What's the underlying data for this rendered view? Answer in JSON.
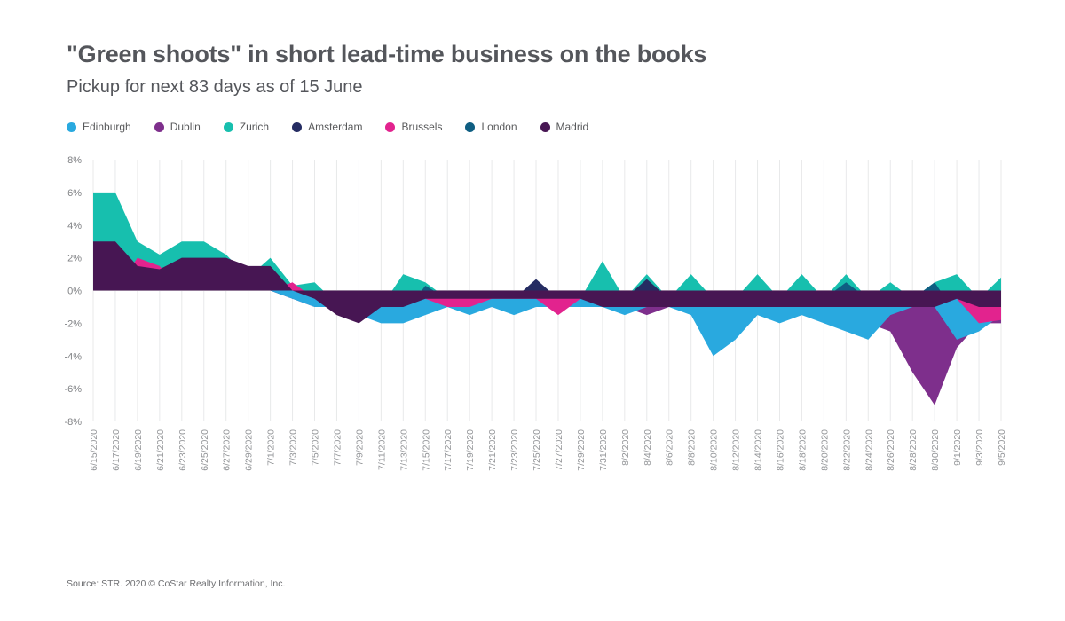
{
  "header": {
    "title": "\"Green shoots\" in short lead-time business on the books",
    "subtitle": "Pickup for next 83 days as of 15 June"
  },
  "source": "Source: STR. 2020 © CoStar Realty Information, Inc.",
  "chart_data": {
    "type": "area",
    "title": "\"Green shoots\" in short lead-time business on the books",
    "subtitle": "Pickup for next 83 days as of 15 June",
    "ylabel": "",
    "xlabel": "",
    "ylim": [
      -8,
      8
    ],
    "ytick_step": 2,
    "ytick_suffix": "%",
    "grid": "vertical",
    "legend_position": "top-left",
    "x": [
      "6/15/2020",
      "6/17/2020",
      "6/19/2020",
      "6/21/2020",
      "6/23/2020",
      "6/25/2020",
      "6/27/2020",
      "6/29/2020",
      "7/1/2020",
      "7/3/2020",
      "7/5/2020",
      "7/7/2020",
      "7/9/2020",
      "7/11/2020",
      "7/13/2020",
      "7/15/2020",
      "7/17/2020",
      "7/19/2020",
      "7/21/2020",
      "7/23/2020",
      "7/25/2020",
      "7/27/2020",
      "7/29/2020",
      "7/31/2020",
      "8/2/2020",
      "8/4/2020",
      "8/6/2020",
      "8/8/2020",
      "8/10/2020",
      "8/12/2020",
      "8/14/2020",
      "8/16/2020",
      "8/18/2020",
      "8/20/2020",
      "8/22/2020",
      "8/24/2020",
      "8/26/2020",
      "8/28/2020",
      "8/30/2020",
      "9/1/2020",
      "9/3/2020",
      "9/5/2020"
    ],
    "series": [
      {
        "name": "Edinburgh",
        "color": "#29a9df",
        "values": [
          0,
          0,
          0,
          0,
          0,
          0,
          0,
          0,
          0,
          -0.5,
          -1,
          -1,
          -1.5,
          -2,
          -2,
          -1.5,
          -1,
          -1.5,
          -1,
          -1.5,
          -1,
          -1,
          -1,
          -1,
          -1.5,
          -1,
          -1,
          -1.5,
          -4,
          -3,
          -1.5,
          -2,
          -1.5,
          -2,
          -2.5,
          -3,
          -1.5,
          -1,
          -1,
          -3,
          -2.5,
          -1.5
        ]
      },
      {
        "name": "Dublin",
        "color": "#7e2f8c",
        "values": [
          0,
          0,
          0,
          0,
          0,
          0,
          0,
          0,
          0,
          -0.5,
          -1,
          -1,
          -1,
          -1,
          -1,
          -1,
          -1,
          -1,
          -1,
          -1,
          -1,
          -1,
          -1,
          -1,
          -1,
          -1.5,
          -1,
          -1,
          -1,
          -1,
          -1,
          -1,
          -1.5,
          -1.5,
          -1.5,
          -2,
          -2.5,
          -5,
          -7,
          -3.5,
          -2,
          -2
        ]
      },
      {
        "name": "Zurich",
        "color": "#17bfae",
        "values": [
          6,
          6,
          3,
          2.2,
          3,
          3,
          2.2,
          0.8,
          2,
          0.3,
          0.5,
          -0.8,
          -0.5,
          -1,
          1,
          0.5,
          -0.5,
          -0.5,
          -0.5,
          -1,
          -0.5,
          -1,
          -0.5,
          1.8,
          -0.5,
          1,
          -0.5,
          1,
          -0.5,
          -0.5,
          1,
          -0.5,
          1,
          -0.5,
          1,
          -0.5,
          0.5,
          -0.5,
          0.5,
          1,
          -0.5,
          0.8
        ]
      },
      {
        "name": "Amsterdam",
        "color": "#252c62",
        "values": [
          0,
          0,
          0,
          0,
          0,
          0,
          0,
          0,
          0,
          -0.3,
          -0.5,
          -1,
          -1,
          -1.5,
          -0.5,
          -0.5,
          -0.5,
          -0.5,
          -0.5,
          -0.5,
          0.7,
          -0.5,
          -0.5,
          -0.5,
          -0.5,
          0.7,
          -0.5,
          -0.5,
          -0.5,
          -0.5,
          -0.5,
          -0.5,
          -0.5,
          -0.5,
          -0.5,
          -0.5,
          -0.5,
          -0.5,
          -0.5,
          -0.5,
          -0.5,
          -0.5
        ]
      },
      {
        "name": "Brussels",
        "color": "#e2238e",
        "values": [
          0,
          0,
          2,
          1.5,
          0,
          0,
          0,
          0,
          0,
          0.5,
          -0.5,
          -0.5,
          -0.5,
          -0.5,
          -0.5,
          -0.5,
          -1,
          -1,
          -0.5,
          -0.5,
          -0.5,
          -1.5,
          -0.5,
          -0.5,
          -1,
          -0.5,
          -0.5,
          -0.5,
          -0.5,
          -0.5,
          -0.5,
          -0.5,
          -0.5,
          -0.5,
          -0.5,
          -0.5,
          -0.5,
          -0.5,
          -0.5,
          -0.5,
          -2,
          -1.8
        ]
      },
      {
        "name": "London",
        "color": "#0f5e82",
        "values": [
          0,
          0,
          0,
          0,
          0,
          0,
          0,
          0,
          0,
          -0.5,
          -0.5,
          -0.5,
          -0.5,
          -1.5,
          -1.5,
          0.3,
          -0.5,
          -0.5,
          -0.5,
          -0.5,
          -0.5,
          -0.5,
          -0.5,
          -0.5,
          -0.5,
          -1,
          -0.5,
          -0.5,
          -0.5,
          -0.5,
          -0.5,
          -0.5,
          -0.5,
          -0.5,
          0.5,
          -0.5,
          -0.5,
          -0.5,
          0.5,
          -1.5,
          -0.5,
          -0.5
        ]
      },
      {
        "name": "Madrid",
        "color": "#471653",
        "values": [
          3,
          3,
          1.5,
          1.3,
          2,
          2,
          2,
          1.5,
          1.5,
          0,
          -0.5,
          -1.5,
          -2,
          -1,
          -1,
          -0.5,
          -0.5,
          -0.5,
          -0.5,
          -0.5,
          -0.5,
          -0.5,
          -0.5,
          -1,
          -1,
          -1,
          -1,
          -1,
          -1,
          -1,
          -1,
          -1,
          -1,
          -1,
          -1,
          -1,
          -1,
          -1,
          -1,
          -0.5,
          -1,
          -1
        ]
      }
    ],
    "paint_order": [
      "Zurich",
      "Amsterdam",
      "London",
      "Dublin",
      "Edinburgh",
      "Brussels",
      "Madrid"
    ]
  }
}
